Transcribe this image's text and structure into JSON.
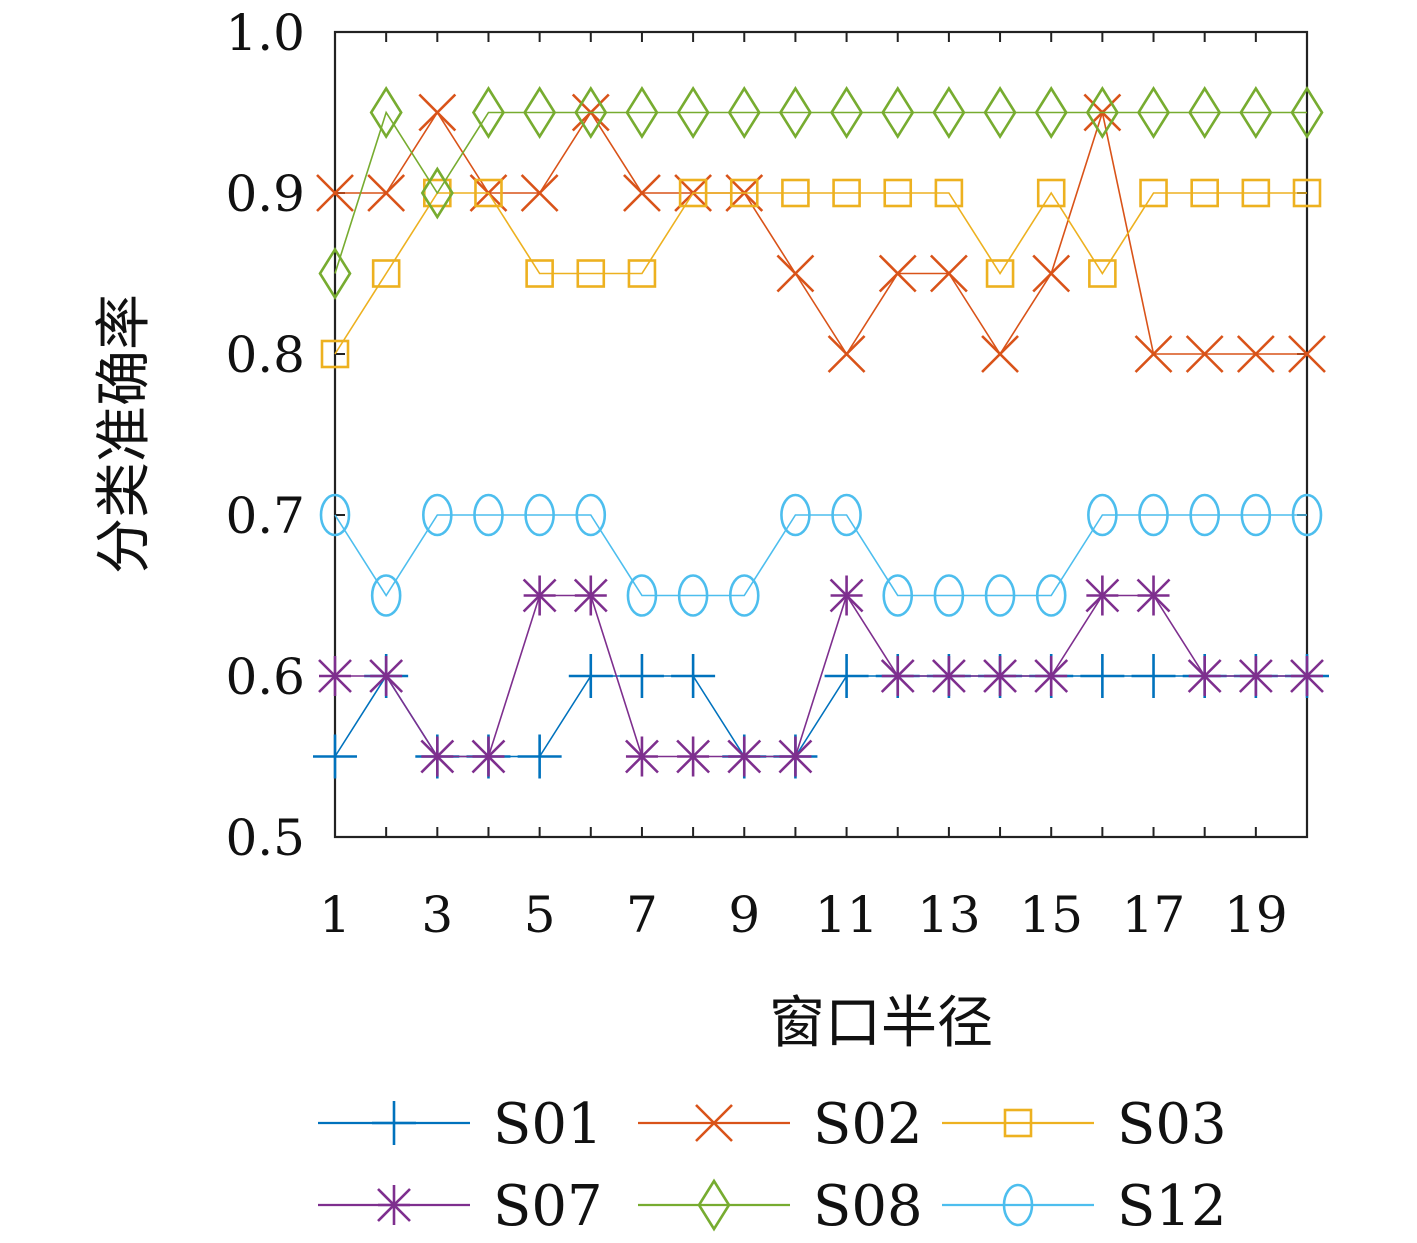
{
  "chart_data": {
    "type": "line",
    "title": "",
    "xlabel": "窗口半径",
    "ylabel": "分类准确率",
    "xlim": [
      1,
      20
    ],
    "ylim": [
      0.5,
      1.0
    ],
    "x": [
      1,
      2,
      3,
      4,
      5,
      6,
      7,
      8,
      9,
      10,
      11,
      12,
      13,
      14,
      15,
      16,
      17,
      18,
      19,
      20
    ],
    "xticks": [
      "1",
      "3",
      "5",
      "7",
      "9",
      "11",
      "13",
      "15",
      "17",
      "19"
    ],
    "yticks": [
      "0.5",
      "0.6",
      "0.7",
      "0.8",
      "0.9",
      "1.0"
    ],
    "grid": false,
    "legend_position": "bottom",
    "series": [
      {
        "name": "S01",
        "color": "#0072BD",
        "marker": "plus",
        "values": [
          0.55,
          0.6,
          0.55,
          0.55,
          0.55,
          0.6,
          0.6,
          0.6,
          0.55,
          0.55,
          0.6,
          0.6,
          0.6,
          0.6,
          0.6,
          0.6,
          0.6,
          0.6,
          0.6,
          0.6
        ]
      },
      {
        "name": "S02",
        "color": "#D95319",
        "marker": "x",
        "values": [
          0.9,
          0.9,
          0.95,
          0.9,
          0.9,
          0.95,
          0.9,
          0.9,
          0.9,
          0.85,
          0.8,
          0.85,
          0.85,
          0.8,
          0.85,
          0.95,
          0.8,
          0.8,
          0.8,
          0.8
        ]
      },
      {
        "name": "S03",
        "color": "#EDB120",
        "marker": "square",
        "values": [
          0.8,
          0.85,
          0.9,
          0.9,
          0.85,
          0.85,
          0.85,
          0.9,
          0.9,
          0.9,
          0.9,
          0.9,
          0.9,
          0.85,
          0.9,
          0.85,
          0.9,
          0.9,
          0.9,
          0.9
        ]
      },
      {
        "name": "S07",
        "color": "#7E2F8E",
        "marker": "asterisk",
        "values": [
          0.6,
          0.6,
          0.55,
          0.55,
          0.65,
          0.65,
          0.55,
          0.55,
          0.55,
          0.55,
          0.65,
          0.6,
          0.6,
          0.6,
          0.6,
          0.65,
          0.65,
          0.6,
          0.6,
          0.6
        ]
      },
      {
        "name": "S08",
        "color": "#77AC30",
        "marker": "diamond",
        "values": [
          0.85,
          0.95,
          0.9,
          0.95,
          0.95,
          0.95,
          0.95,
          0.95,
          0.95,
          0.95,
          0.95,
          0.95,
          0.95,
          0.95,
          0.95,
          0.95,
          0.95,
          0.95,
          0.95,
          0.95
        ]
      },
      {
        "name": "S12",
        "color": "#4DBEEE",
        "marker": "circle",
        "values": [
          0.7,
          0.65,
          0.7,
          0.7,
          0.7,
          0.7,
          0.65,
          0.65,
          0.65,
          0.7,
          0.7,
          0.65,
          0.65,
          0.65,
          0.65,
          0.7,
          0.7,
          0.7,
          0.7,
          0.7
        ]
      }
    ]
  }
}
